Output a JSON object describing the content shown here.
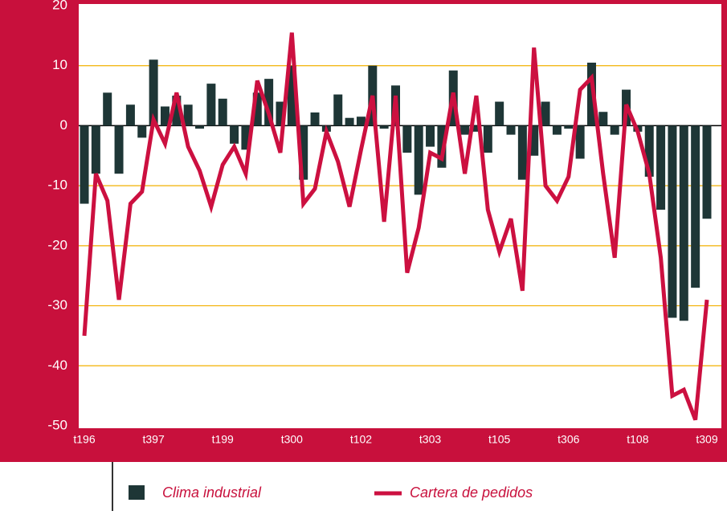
{
  "chart_data": {
    "type": "bar-line",
    "categories": [
      "t196",
      null,
      null,
      null,
      null,
      null,
      "t397",
      null,
      null,
      null,
      null,
      null,
      "t199",
      null,
      null,
      null,
      null,
      null,
      "t300",
      null,
      null,
      null,
      null,
      null,
      "t102",
      null,
      null,
      null,
      null,
      null,
      "t303",
      null,
      null,
      null,
      null,
      null,
      "t105",
      null,
      null,
      null,
      null,
      null,
      "t306",
      null,
      null,
      null,
      null,
      null,
      "t108",
      null,
      null,
      null,
      null,
      null,
      "t309"
    ],
    "series": [
      {
        "name": "Clima industrial",
        "color": "#1e3636",
        "kind": "bar",
        "values": [
          -13,
          -8,
          5.5,
          -8,
          3.5,
          -2,
          11,
          3.2,
          5,
          3.5,
          -0.5,
          7,
          4.5,
          -3,
          -4,
          5.5,
          7.8,
          4,
          10,
          -9,
          2.2,
          -1,
          5.2,
          1.3,
          1.5,
          10,
          -0.5,
          6.7,
          -4.5,
          -11.5,
          -3.5,
          -7,
          9.2,
          -1.5,
          -1,
          -4.5,
          4,
          -1.5,
          -9,
          -5,
          4,
          -1.5,
          -0.5,
          -5.5,
          10.5,
          2.3,
          -1.5,
          6,
          -1,
          -8.5,
          -14,
          -32,
          -32.5,
          -27,
          -15.5
        ]
      },
      {
        "name": "Cartera de pedidos",
        "color": "#cc1040",
        "kind": "line",
        "values": [
          -35,
          -8,
          -12.5,
          -29,
          -13,
          -11,
          1,
          -3,
          5.5,
          -3.5,
          -7.5,
          -13.5,
          -6.5,
          -3.5,
          -8,
          7.5,
          2,
          -4.5,
          15.5,
          -13,
          -10.5,
          -1,
          -6,
          -13.5,
          -4,
          5,
          -16,
          5,
          -24.5,
          -17,
          -4.5,
          -5.5,
          5.5,
          -8,
          5,
          -14,
          -21,
          -15.5,
          -27.5,
          13,
          -10,
          -12.5,
          -8.5,
          6,
          8,
          -8,
          -22,
          3.5,
          -1,
          -8,
          -22,
          -45,
          -44,
          -49,
          -29
        ]
      }
    ],
    "ylim": [
      -50,
      20
    ],
    "yticks": [
      -50,
      -40,
      -30,
      -20,
      -10,
      0,
      10,
      20
    ],
    "grid": true
  }
}
